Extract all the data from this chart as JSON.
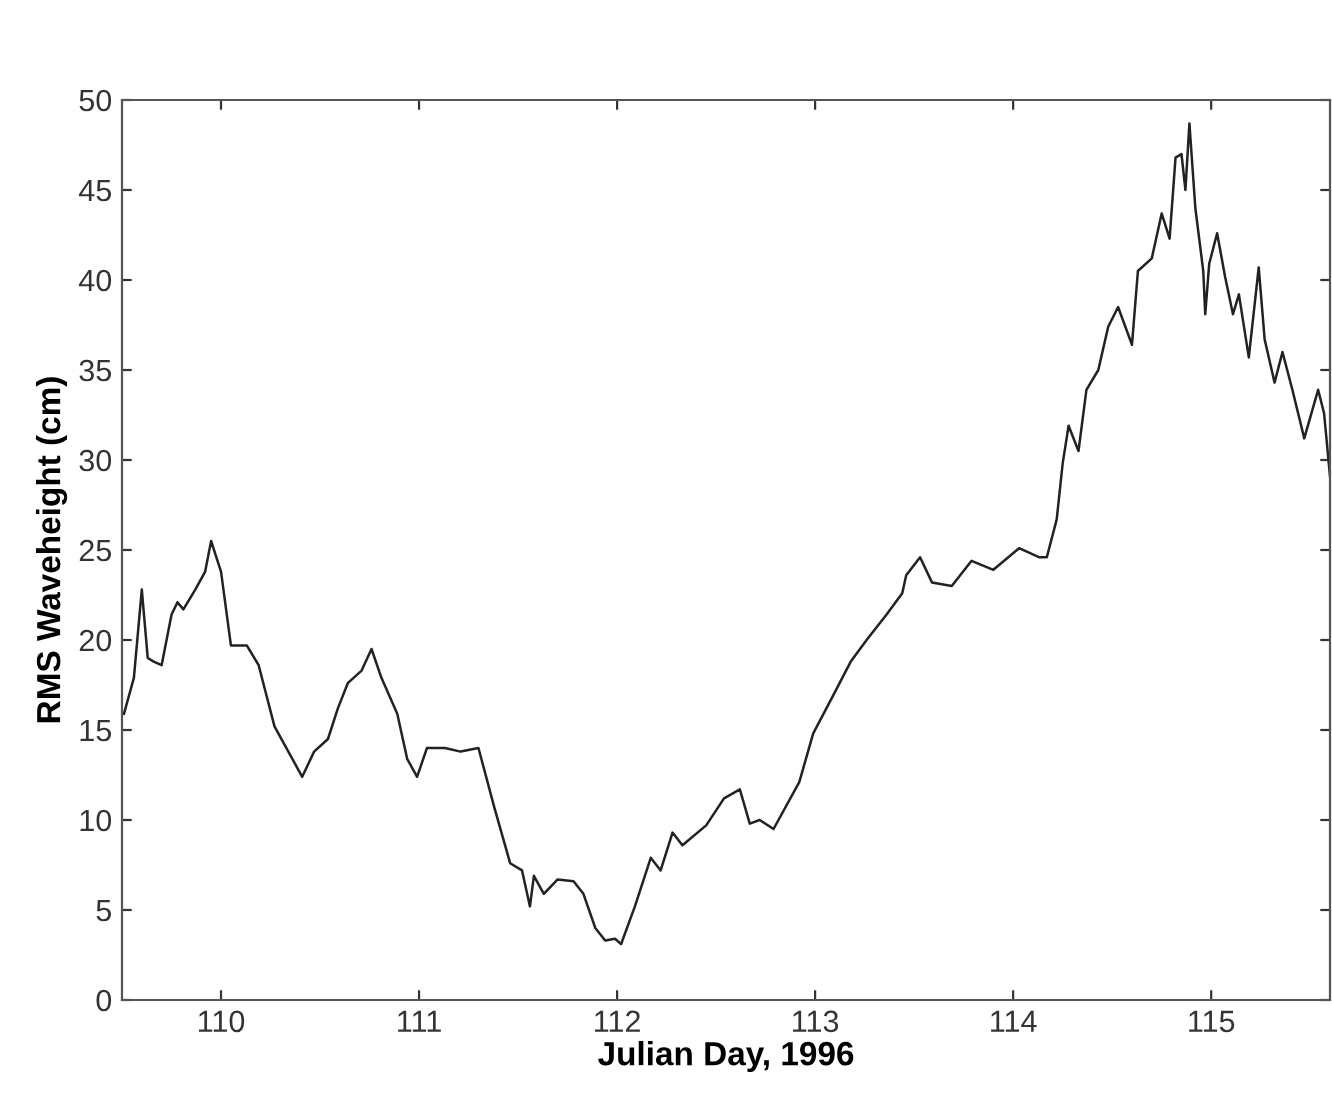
{
  "chart_data": {
    "type": "line",
    "xlabel": "Julian Day, 1996",
    "ylabel": "RMS Waveheight (cm)",
    "xlim": [
      109.5,
      115.6
    ],
    "xticks": [
      110,
      111,
      112,
      113,
      114,
      115
    ],
    "ylim": [
      0,
      50
    ],
    "yticks": [
      0,
      5,
      10,
      15,
      20,
      25,
      30,
      35,
      40,
      45,
      50
    ],
    "grid": false,
    "series": [
      {
        "color": "#222222",
        "x": [
          109.51,
          109.56,
          109.6,
          109.63,
          109.66,
          109.7,
          109.75,
          109.78,
          109.81,
          109.87,
          109.92,
          109.95,
          110.0,
          110.05,
          110.13,
          110.19,
          110.27,
          110.34,
          110.41,
          110.47,
          110.54,
          110.59,
          110.64,
          110.71,
          110.76,
          110.81,
          110.89,
          110.94,
          110.99,
          111.04,
          111.13,
          111.21,
          111.3,
          111.38,
          111.46,
          111.52,
          111.56,
          111.58,
          111.63,
          111.7,
          111.78,
          111.83,
          111.89,
          111.94,
          111.99,
          112.02,
          112.09,
          112.17,
          112.22,
          112.28,
          112.33,
          112.45,
          112.54,
          112.62,
          112.67,
          112.72,
          112.79,
          112.92,
          112.99,
          113.09,
          113.18,
          113.26,
          113.36,
          113.44,
          113.46,
          113.53,
          113.59,
          113.69,
          113.79,
          113.9,
          114.03,
          114.13,
          114.17,
          114.22,
          114.25,
          114.28,
          114.33,
          114.37,
          114.43,
          114.48,
          114.53,
          114.6,
          114.63,
          114.7,
          114.75,
          114.79,
          114.82,
          114.85,
          114.87,
          114.89,
          114.92,
          114.96,
          114.97,
          114.99,
          115.03,
          115.07,
          115.11,
          115.14,
          115.19,
          115.24,
          115.27,
          115.32,
          115.36,
          115.41,
          115.47,
          115.54,
          115.57,
          115.6
        ],
        "values": [
          15.9,
          17.9,
          22.8,
          19.0,
          18.8,
          18.6,
          21.4,
          22.1,
          21.7,
          22.8,
          23.8,
          25.5,
          23.8,
          19.7,
          19.7,
          18.6,
          15.2,
          13.8,
          12.4,
          13.8,
          14.5,
          16.2,
          17.6,
          18.3,
          19.5,
          17.9,
          15.9,
          13.4,
          12.4,
          14.0,
          14.0,
          13.8,
          14.0,
          10.7,
          7.6,
          7.2,
          5.2,
          6.9,
          5.9,
          6.7,
          6.6,
          5.9,
          4.0,
          3.3,
          3.4,
          3.1,
          5.2,
          7.9,
          7.2,
          9.3,
          8.6,
          9.7,
          11.2,
          11.7,
          9.8,
          10.0,
          9.5,
          12.1,
          14.8,
          16.9,
          18.8,
          20.0,
          21.4,
          22.6,
          23.6,
          24.6,
          23.2,
          23.0,
          24.4,
          23.9,
          25.1,
          24.6,
          24.6,
          26.7,
          29.8,
          31.9,
          30.5,
          33.9,
          35.0,
          37.4,
          38.5,
          36.4,
          40.5,
          41.2,
          43.7,
          42.3,
          46.8,
          47.0,
          45.0,
          48.7,
          44.0,
          40.5,
          38.1,
          40.9,
          42.6,
          40.2,
          38.1,
          39.2,
          35.7,
          40.7,
          36.7,
          34.3,
          36.0,
          33.9,
          31.2,
          33.9,
          32.6,
          29.1
        ]
      }
    ]
  }
}
